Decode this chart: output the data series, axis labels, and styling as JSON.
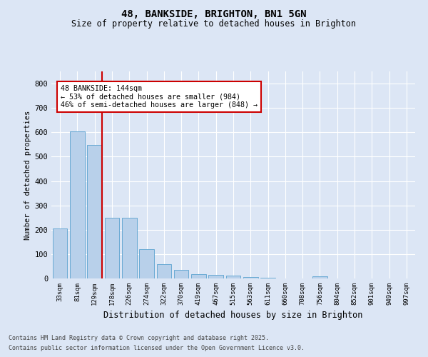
{
  "title1": "48, BANKSIDE, BRIGHTON, BN1 5GN",
  "title2": "Size of property relative to detached houses in Brighton",
  "xlabel": "Distribution of detached houses by size in Brighton",
  "ylabel": "Number of detached properties",
  "categories": [
    "33sqm",
    "81sqm",
    "129sqm",
    "178sqm",
    "226sqm",
    "274sqm",
    "322sqm",
    "370sqm",
    "419sqm",
    "467sqm",
    "515sqm",
    "563sqm",
    "611sqm",
    "660sqm",
    "708sqm",
    "756sqm",
    "804sqm",
    "852sqm",
    "901sqm",
    "949sqm",
    "997sqm"
  ],
  "values": [
    205,
    605,
    548,
    250,
    250,
    120,
    58,
    35,
    18,
    15,
    12,
    5,
    2,
    0,
    0,
    8,
    0,
    0,
    0,
    0,
    0
  ],
  "bar_color": "#b8d0ea",
  "bar_edge_color": "#6aaad4",
  "vline_color": "#cc0000",
  "annotation_text": "48 BANKSIDE: 144sqm\n← 53% of detached houses are smaller (984)\n46% of semi-detached houses are larger (848) →",
  "annotation_box_color": "#ffffff",
  "annotation_box_edge": "#cc0000",
  "background_color": "#dce6f5",
  "plot_bg_color": "#dce6f5",
  "footer_line1": "Contains HM Land Registry data © Crown copyright and database right 2025.",
  "footer_line2": "Contains public sector information licensed under the Open Government Licence v3.0.",
  "ylim": [
    0,
    850
  ],
  "yticks": [
    0,
    100,
    200,
    300,
    400,
    500,
    600,
    700,
    800
  ],
  "grid_color": "#ffffff"
}
